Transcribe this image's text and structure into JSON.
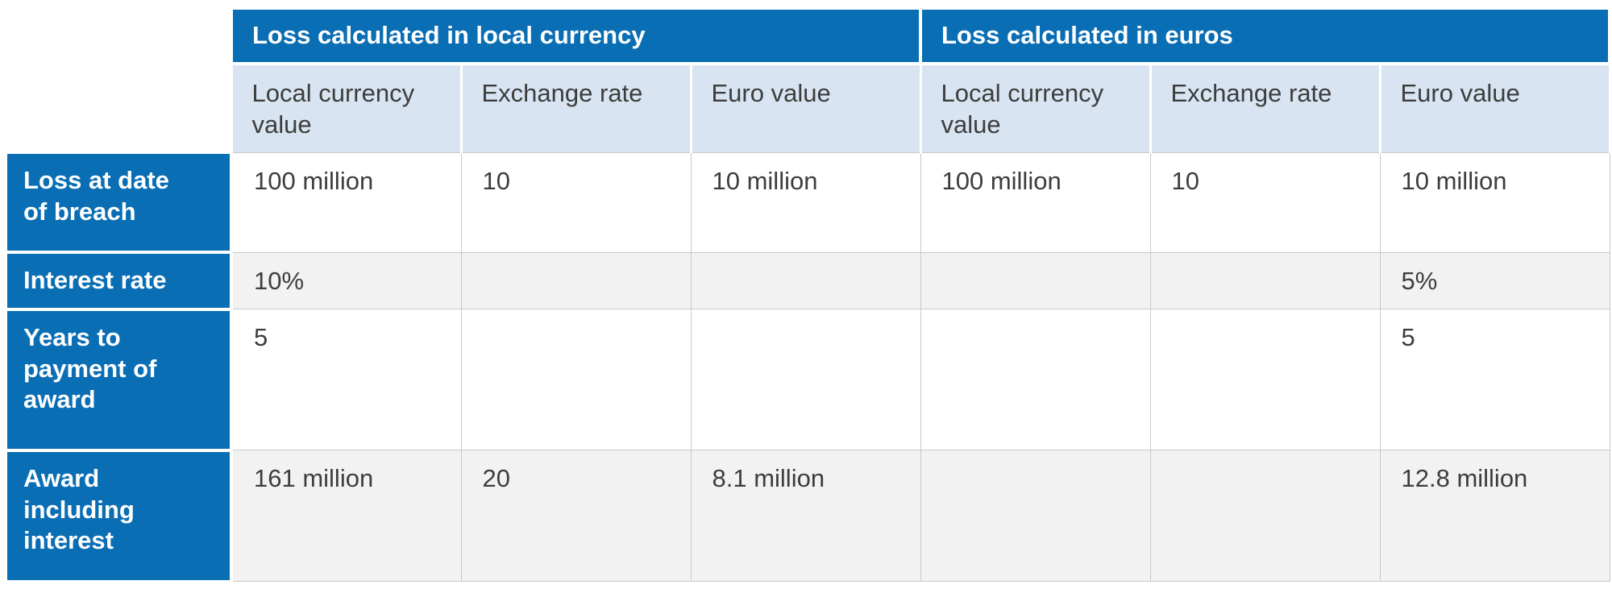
{
  "table": {
    "group_headers": [
      {
        "label": "Loss calculated in local currency"
      },
      {
        "label": "Loss calculated in euros"
      }
    ],
    "column_headers": [
      "Local currency value",
      "Exchange rate",
      "Euro value",
      "Local currency value",
      "Exchange rate",
      "Euro value"
    ],
    "rows": [
      {
        "header": "Loss at date of breach",
        "cells": [
          "100 million",
          "10",
          "10 million",
          "100 million",
          "10",
          "10 million"
        ]
      },
      {
        "header": "Interest rate",
        "cells": [
          "10%",
          "",
          "",
          "",
          "",
          "5%"
        ]
      },
      {
        "header": "Years to payment of award",
        "cells": [
          "5",
          "",
          "",
          "",
          "",
          "5"
        ]
      },
      {
        "header": "Award including interest",
        "cells": [
          "161 million",
          "20",
          "8.1 million",
          "",
          "",
          "12.8 million"
        ]
      }
    ],
    "colors": {
      "header_blue": "#0a6eb4",
      "subheader_blue": "#d8e4f1",
      "alt_row_gray": "#f2f2f2",
      "border_gray": "#c9c9c9",
      "text_dark": "#3d3d3d"
    }
  }
}
